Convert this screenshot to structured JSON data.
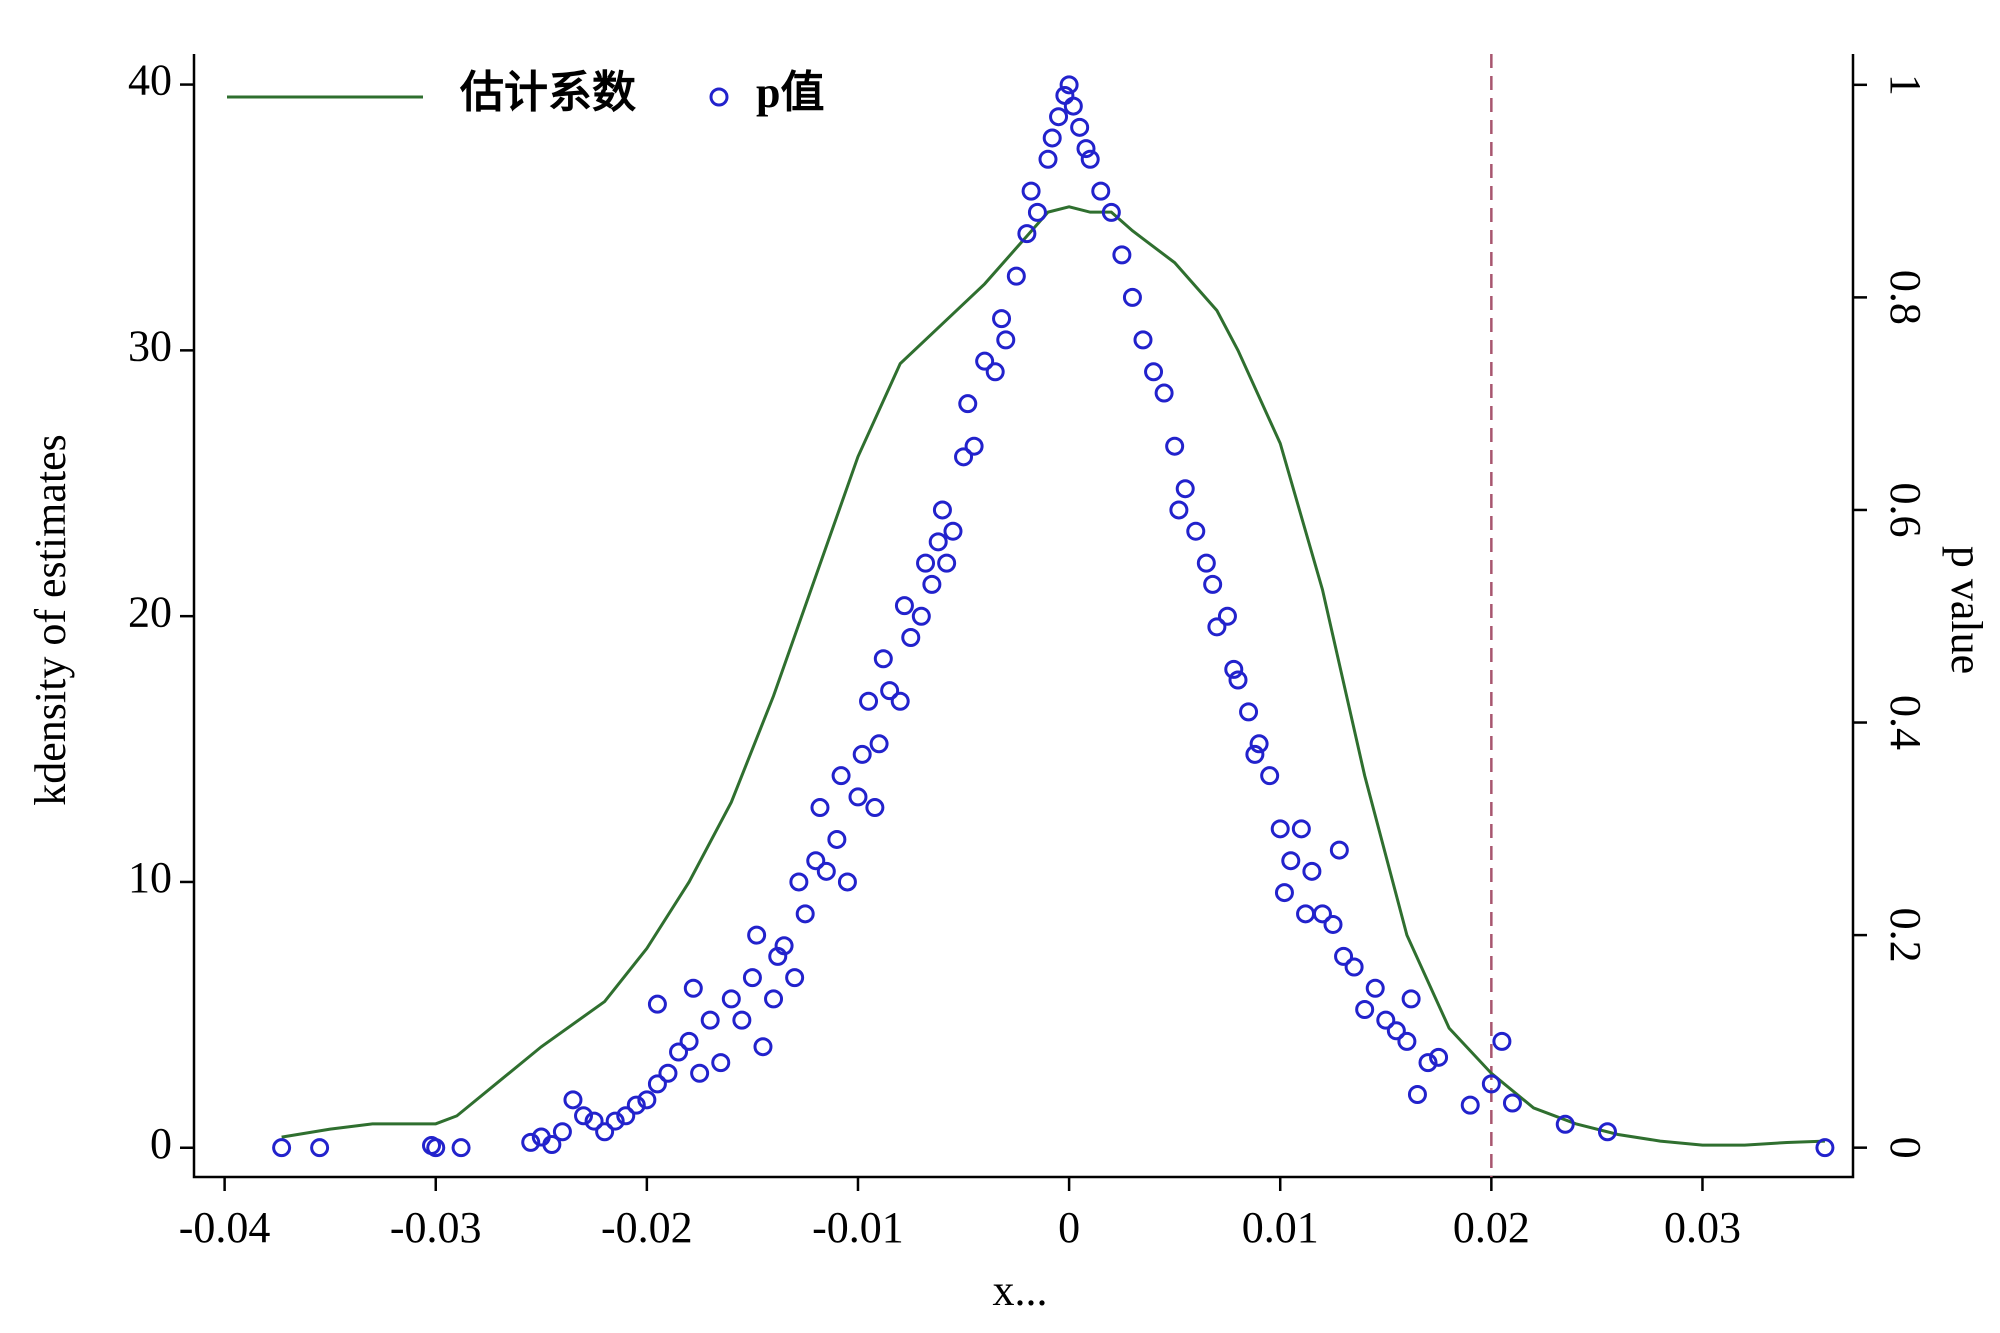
{
  "chart_data": {
    "type": "line",
    "y_label": "kdensity of estimates",
    "y2_label": "p value",
    "x_label": "x...",
    "xlim": [
      -0.04145,
      0.03713
    ],
    "xticks": [
      -0.04,
      -0.03,
      -0.02,
      -0.01,
      0,
      0.01,
      0.02,
      0.03
    ],
    "ylim": [
      -1.1,
      41.15
    ],
    "yticks": [
      0,
      10,
      20,
      30,
      40
    ],
    "y2lim": [
      -0.0276,
      1.029
    ],
    "y2ticks": [
      0,
      0.2,
      0.4,
      0.6,
      0.8,
      1
    ],
    "legend": "top-left",
    "reference_line": {
      "x": 0.02,
      "color": "#a8566f"
    },
    "series": [
      {
        "name": "估计系数",
        "type": "line",
        "color": "#2f6f2f",
        "x": [
          -0.0373,
          -0.035,
          -0.033,
          -0.03,
          -0.029,
          -0.027,
          -0.025,
          -0.022,
          -0.02,
          -0.018,
          -0.016,
          -0.014,
          -0.012,
          -0.01,
          -0.008,
          -0.006,
          -0.004,
          -0.002,
          -0.001,
          0,
          0.001,
          0.002,
          0.003,
          0.005,
          0.007,
          0.008,
          0.01,
          0.012,
          0.014,
          0.016,
          0.018,
          0.02,
          0.022,
          0.024,
          0.026,
          0.028,
          0.03,
          0.032,
          0.034,
          0.0358
        ],
        "values": [
          0.4,
          0.7,
          0.9,
          0.9,
          1.2,
          2.5,
          3.8,
          5.5,
          7.5,
          10,
          13,
          17,
          21.5,
          26,
          29.5,
          31,
          32.5,
          34.3,
          35.2,
          35.4,
          35.2,
          35.2,
          34.5,
          33.3,
          31.5,
          30,
          26.5,
          21,
          14,
          8,
          4.5,
          2.8,
          1.5,
          0.9,
          0.5,
          0.25,
          0.1,
          0.1,
          0.2,
          0.25
        ]
      },
      {
        "name": "p值",
        "type": "scatter",
        "axis": "y2",
        "color": "#2222cc",
        "x": [
          -0.0373,
          -0.0355,
          -0.0302,
          -0.03,
          -0.0288,
          -0.0255,
          -0.025,
          -0.0245,
          -0.024,
          -0.0235,
          -0.023,
          -0.0225,
          -0.022,
          -0.0215,
          -0.021,
          -0.0205,
          -0.02,
          -0.0195,
          -0.0195,
          -0.019,
          -0.0185,
          -0.018,
          -0.0178,
          -0.0175,
          -0.017,
          -0.0165,
          -0.016,
          -0.0155,
          -0.015,
          -0.0148,
          -0.0145,
          -0.014,
          -0.0138,
          -0.0135,
          -0.013,
          -0.0128,
          -0.0125,
          -0.012,
          -0.0118,
          -0.0115,
          -0.011,
          -0.0108,
          -0.0105,
          -0.01,
          -0.0098,
          -0.0095,
          -0.0092,
          -0.009,
          -0.0088,
          -0.0085,
          -0.008,
          -0.0078,
          -0.0075,
          -0.007,
          -0.0068,
          -0.0065,
          -0.0062,
          -0.006,
          -0.0058,
          -0.0055,
          -0.005,
          -0.0048,
          -0.0045,
          -0.004,
          -0.0035,
          -0.0032,
          -0.003,
          -0.0025,
          -0.002,
          -0.0018,
          -0.0015,
          -0.001,
          -0.0008,
          -0.0005,
          -0.0002,
          0,
          0.0002,
          0.0005,
          0.0008,
          0.001,
          0.0015,
          0.002,
          0.0025,
          0.003,
          0.0035,
          0.004,
          0.0045,
          0.005,
          0.0052,
          0.0055,
          0.006,
          0.0065,
          0.0068,
          0.007,
          0.0075,
          0.0078,
          0.008,
          0.0085,
          0.0088,
          0.009,
          0.0095,
          0.01,
          0.0102,
          0.0105,
          0.011,
          0.0112,
          0.0115,
          0.012,
          0.0125,
          0.0128,
          0.013,
          0.0135,
          0.014,
          0.0145,
          0.015,
          0.0155,
          0.016,
          0.0162,
          0.0165,
          0.017,
          0.0175,
          0.019,
          0.02,
          0.0205,
          0.021,
          0.0235,
          0.0255,
          0.0358
        ],
        "values": [
          0,
          0,
          0.002,
          0,
          0,
          0.005,
          0.01,
          0.003,
          0.015,
          0.045,
          0.03,
          0.025,
          0.015,
          0.025,
          0.03,
          0.04,
          0.045,
          0.06,
          0.135,
          0.07,
          0.09,
          0.1,
          0.15,
          0.07,
          0.12,
          0.08,
          0.14,
          0.12,
          0.16,
          0.2,
          0.095,
          0.14,
          0.18,
          0.19,
          0.16,
          0.25,
          0.22,
          0.27,
          0.32,
          0.26,
          0.29,
          0.35,
          0.25,
          0.33,
          0.37,
          0.42,
          0.32,
          0.38,
          0.46,
          0.43,
          0.42,
          0.51,
          0.48,
          0.5,
          0.55,
          0.53,
          0.57,
          0.6,
          0.55,
          0.58,
          0.65,
          0.7,
          0.66,
          0.74,
          0.73,
          0.78,
          0.76,
          0.82,
          0.86,
          0.9,
          0.88,
          0.93,
          0.95,
          0.97,
          0.99,
          1,
          0.98,
          0.96,
          0.94,
          0.93,
          0.9,
          0.88,
          0.84,
          0.8,
          0.76,
          0.73,
          0.71,
          0.66,
          0.6,
          0.62,
          0.58,
          0.55,
          0.53,
          0.49,
          0.5,
          0.45,
          0.44,
          0.41,
          0.37,
          0.38,
          0.35,
          0.3,
          0.24,
          0.27,
          0.3,
          0.22,
          0.26,
          0.22,
          0.21,
          0.28,
          0.18,
          0.17,
          0.13,
          0.15,
          0.12,
          0.11,
          0.1,
          0.14,
          0.05,
          0.08,
          0.085,
          0.04,
          0.06,
          0.1,
          0.042,
          0.022,
          0.015,
          0
        ]
      }
    ]
  }
}
